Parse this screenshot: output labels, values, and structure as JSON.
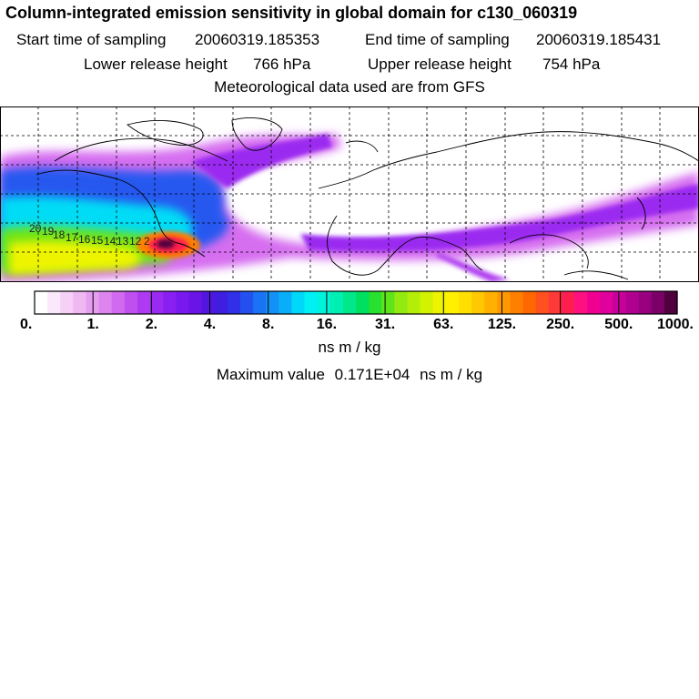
{
  "header": {
    "title": "Column-integrated emission sensitivity in global domain for c130_060319",
    "start_label": "Start time of sampling",
    "start_value": "20060319.185353",
    "end_label": "End time of sampling",
    "end_value": "20060319.185431",
    "lower_label": "Lower release height",
    "lower_value": "766 hPa",
    "upper_label": "Upper release height",
    "upper_value": "754 hPa",
    "met_text": "Meteorological data used are from GFS"
  },
  "map": {
    "projection": "lat-lon global",
    "grid": "dashed",
    "track_labels": [
      "20",
      "19",
      "18",
      "17",
      "16",
      "15",
      "14",
      "13",
      "12",
      "2"
    ]
  },
  "legend": {
    "ticks": [
      "0.",
      "1.",
      "2.",
      "4.",
      "8.",
      "16.",
      "31.",
      "63.",
      "125.",
      "250.",
      "500.",
      "1000."
    ],
    "units": "ns m / kg",
    "colors": [
      "#ffffff",
      "#fbe8fb",
      "#f6d0f6",
      "#efb8f2",
      "#e79ef0",
      "#dd84ee",
      "#d26af0",
      "#c04ff0",
      "#ae3af2",
      "#9a2af0",
      "#8a1ff2",
      "#7a18f0",
      "#6a14e8",
      "#5316e0",
      "#3f1ee0",
      "#3030e8",
      "#2450f0",
      "#1a72f4",
      "#1292f6",
      "#0aaef8",
      "#00d8fa",
      "#00f0f4",
      "#00f4dc",
      "#00f0b4",
      "#00e88a",
      "#00e060",
      "#28e030",
      "#5ee418",
      "#92ea10",
      "#b4ee08",
      "#d2f200",
      "#eef400",
      "#fff000",
      "#ffe000",
      "#ffc800",
      "#ffb000",
      "#ff9800",
      "#ff8000",
      "#ff6800",
      "#ff5020",
      "#ff3838",
      "#ff1e50",
      "#ff1080",
      "#f00090",
      "#e0009c",
      "#c8009c",
      "#b00090",
      "#980080",
      "#7a0068",
      "#50003c"
    ]
  },
  "max_value": {
    "label": "Maximum value",
    "value": "0.171E+04",
    "units": "ns m / kg"
  }
}
